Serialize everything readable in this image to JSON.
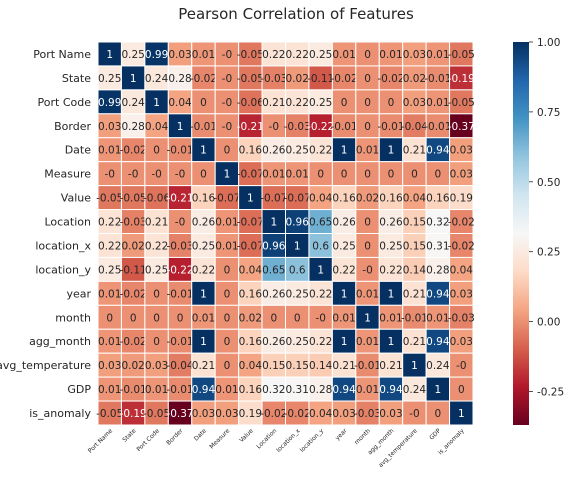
{
  "chart_data": {
    "type": "heatmap",
    "title": "Pearson Correlation of Features",
    "row_labels": [
      "Port Name",
      "State",
      "Port Code",
      "Border",
      "Date",
      "Measure",
      "Value",
      "Location",
      "location_x",
      "location_y",
      "year",
      "month",
      "agg_month",
      "avg_temperature",
      "GDP",
      "is_anomaly"
    ],
    "col_labels": [
      "Port Name",
      "State",
      "Port Code",
      "Border",
      "Date",
      "Measure",
      "Value",
      "Location",
      "location_x",
      "location_y",
      "year",
      "month",
      "agg_month",
      "avg_temperature",
      "GDP",
      "is_anomaly"
    ],
    "matrix": [
      [
        "1",
        "0.25",
        "0.99",
        "0.03",
        "0.01",
        "-0",
        "-0.05",
        "0.22",
        "0.22",
        "0.25",
        "0.01",
        "0",
        "0.01",
        "0.03",
        "0.01",
        "-0.05"
      ],
      [
        "0.25",
        "1",
        "0.24",
        "0.28",
        "-0.02",
        "-0",
        "-0.05",
        "-0.03",
        "0.02",
        "-0.11",
        "-0.02",
        "0",
        "-0.02",
        "0.02",
        "-0.01",
        "-0.19"
      ],
      [
        "0.99",
        "0.24",
        "1",
        "0.04",
        "0",
        "-0",
        "-0.06",
        "0.21",
        "0.22",
        "0.25",
        "0",
        "0",
        "0",
        "0.03",
        "0.01",
        "-0.05"
      ],
      [
        "0.03",
        "0.28",
        "0.04",
        "1",
        "-0.01",
        "-0",
        "-0.21",
        "-0",
        "-0.03",
        "-0.22",
        "-0.01",
        "0",
        "-0.01",
        "-0.04",
        "-0.01",
        "-0.37"
      ],
      [
        "0.01",
        "-0.02",
        "0",
        "-0.01",
        "1",
        "0",
        "0.16",
        "0.26",
        "0.25",
        "0.22",
        "1",
        "0.01",
        "1",
        "0.21",
        "0.94",
        "0.03"
      ],
      [
        "-0",
        "-0",
        "-0",
        "-0",
        "0",
        "1",
        "-0.07",
        "0.01",
        "0.01",
        "0",
        "0",
        "0",
        "0",
        "0",
        "0",
        "0.03"
      ],
      [
        "-0.05",
        "-0.05",
        "-0.06",
        "-0.21",
        "0.16",
        "-0.07",
        "1",
        "-0.07",
        "-0.07",
        "0.04",
        "0.16",
        "0.02",
        "0.16",
        "0.04",
        "0.16",
        "0.19"
      ],
      [
        "0.22",
        "-0.03",
        "0.21",
        "-0",
        "0.26",
        "0.01",
        "-0.07",
        "1",
        "0.96",
        "0.65",
        "0.26",
        "0",
        "0.26",
        "0.15",
        "0.32",
        "-0.02"
      ],
      [
        "0.22",
        "0.02",
        "0.22",
        "-0.03",
        "0.25",
        "0.01",
        "-0.07",
        "0.96",
        "1",
        "0.6",
        "0.25",
        "0",
        "0.25",
        "0.15",
        "0.31",
        "-0.02"
      ],
      [
        "0.25",
        "-0.11",
        "0.25",
        "-0.22",
        "0.22",
        "0",
        "0.04",
        "0.65",
        "0.6",
        "1",
        "0.22",
        "-0",
        "0.22",
        "0.14",
        "0.28",
        "0.04"
      ],
      [
        "0.01",
        "-0.02",
        "0",
        "-0.01",
        "1",
        "0",
        "0.16",
        "0.26",
        "0.25",
        "0.22",
        "1",
        "0.01",
        "1",
        "0.21",
        "0.94",
        "0.03"
      ],
      [
        "0",
        "0",
        "0",
        "0",
        "0.01",
        "0",
        "0.02",
        "0",
        "0",
        "-0",
        "0.01",
        "1",
        "0.01",
        "-0.01",
        "0.01",
        "-0.03"
      ],
      [
        "0.01",
        "-0.02",
        "0",
        "-0.01",
        "1",
        "0",
        "0.16",
        "0.26",
        "0.25",
        "0.22",
        "1",
        "0.01",
        "1",
        "0.21",
        "0.94",
        "0.03"
      ],
      [
        "0.03",
        "0.02",
        "0.03",
        "-0.04",
        "0.21",
        "0",
        "0.04",
        "0.15",
        "0.15",
        "0.14",
        "0.21",
        "-0.01",
        "0.21",
        "1",
        "0.24",
        "-0"
      ],
      [
        "0.01",
        "-0.01",
        "0.01",
        "-0.01",
        "0.94",
        "0.01",
        "0.16",
        "0.32",
        "0.31",
        "0.28",
        "0.94",
        "0.01",
        "0.94",
        "0.24",
        "1",
        "0"
      ],
      [
        "-0.05",
        "-0.19",
        "-0.05",
        "-0.37",
        "0.03",
        "0.03",
        "0.19",
        "-0.02",
        "-0.02",
        "0.04",
        "0.03",
        "-0.03",
        "0.03",
        "-0",
        "0",
        "1"
      ]
    ],
    "colorbar": {
      "colormap": "RdBu",
      "range": [
        -0.37,
        1
      ],
      "ticks": [
        "1.00",
        "0.75",
        "0.50",
        "0.25",
        "0.00",
        "-0.25"
      ]
    },
    "grid": true
  }
}
